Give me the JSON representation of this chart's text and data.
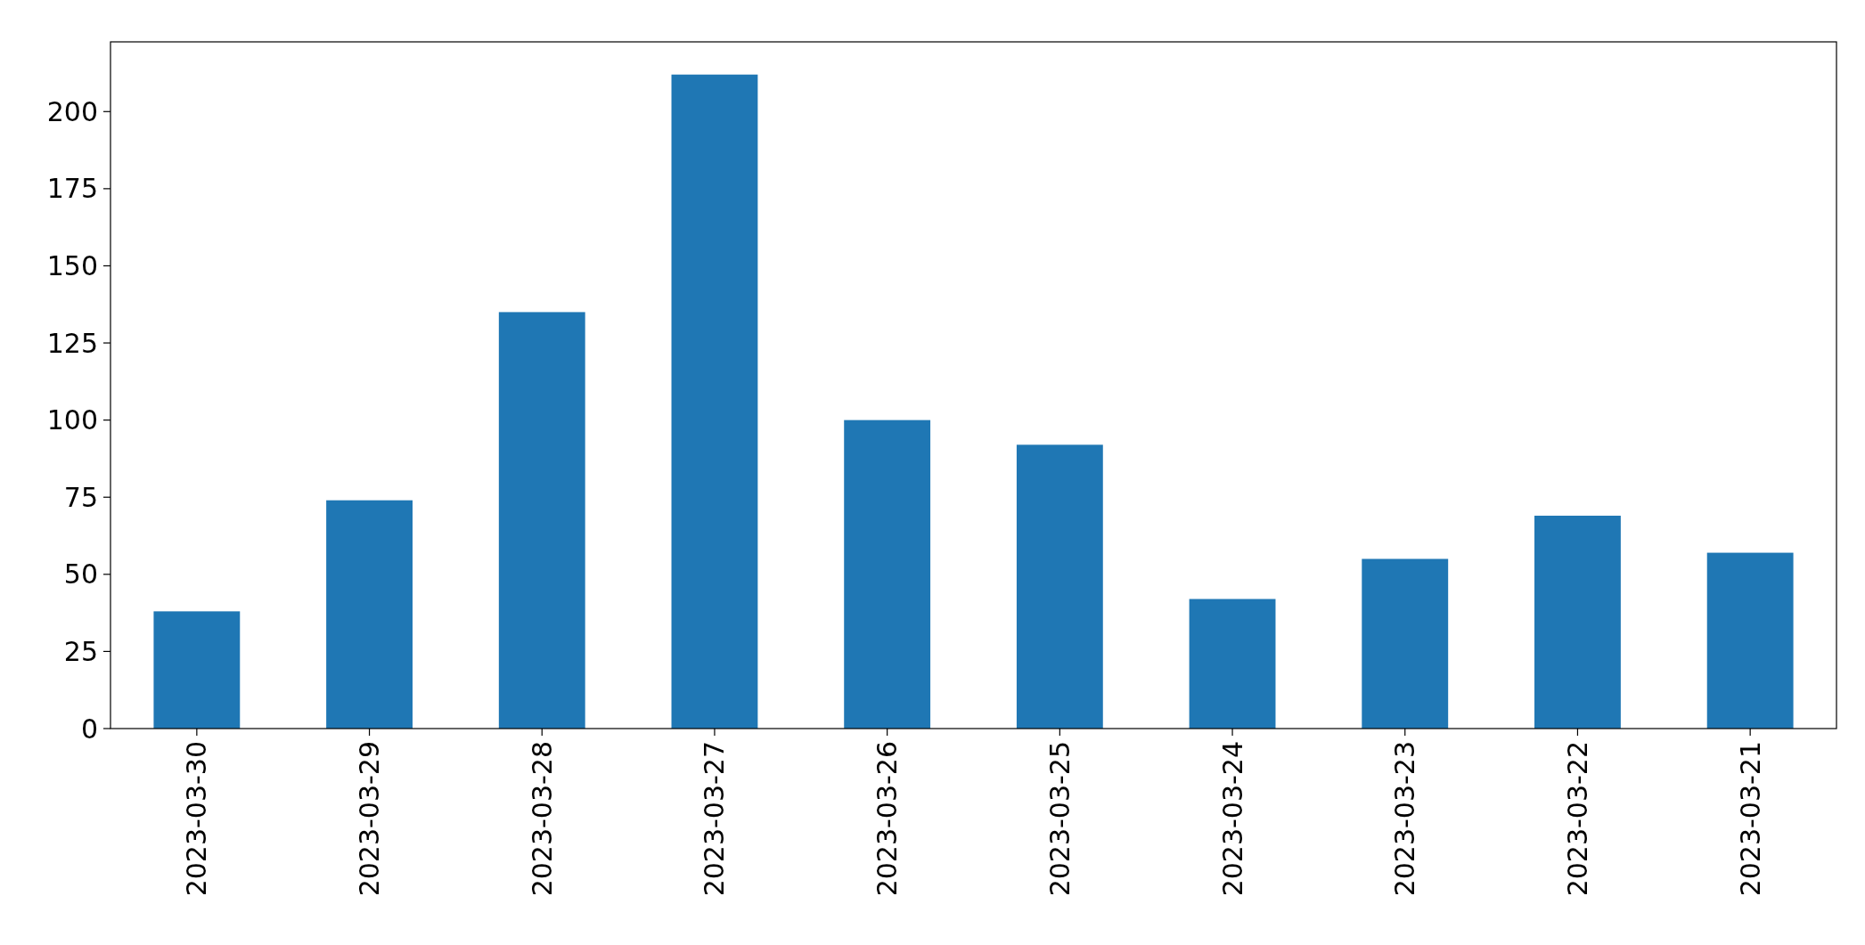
{
  "chart_data": {
    "type": "bar",
    "categories": [
      "2023-03-30",
      "2023-03-29",
      "2023-03-28",
      "2023-03-27",
      "2023-03-26",
      "2023-03-25",
      "2023-03-24",
      "2023-03-23",
      "2023-03-22",
      "2023-03-21"
    ],
    "values": [
      38,
      74,
      135,
      212,
      100,
      92,
      42,
      55,
      69,
      57
    ],
    "color": "#1f77b4",
    "ylim": [
      0,
      222.6
    ],
    "yticks": [
      0,
      25,
      50,
      75,
      100,
      125,
      150,
      175,
      200
    ],
    "grid": false
  }
}
